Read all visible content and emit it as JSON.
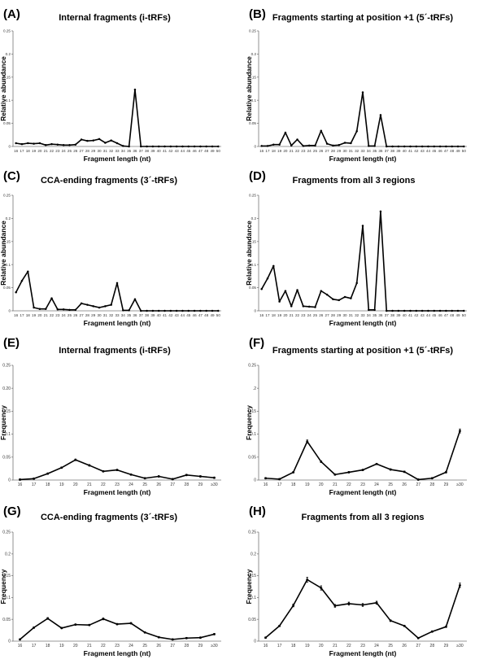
{
  "chart_data": [
    {
      "panel": "(A)",
      "type": "line",
      "title": "Internal fragments (i-tRFs)",
      "xlabel": "Fragment length (nt)",
      "ylabel": "Relative abundance",
      "ylim": [
        0,
        0.25
      ],
      "yticks": [
        "0",
        "0.05",
        "0.1",
        "0.15",
        "0.2",
        "0.25"
      ],
      "categories": [
        "16",
        "17",
        "18",
        "19",
        "20",
        "21",
        "22",
        "23",
        "24",
        "25",
        "26",
        "27",
        "28",
        "29",
        "30",
        "31",
        "32",
        "33",
        "34",
        "35",
        "36",
        "37",
        "38",
        "39",
        "40",
        "41",
        "42",
        "43",
        "44",
        "45",
        "46",
        "47",
        "48",
        "49",
        "50"
      ],
      "values": [
        0.007,
        0.005,
        0.007,
        0.006,
        0.007,
        0.003,
        0.005,
        0.004,
        0.003,
        0.003,
        0.004,
        0.015,
        0.012,
        0.013,
        0.016,
        0.008,
        0.013,
        0.007,
        0.001,
        0.0,
        0.123,
        0.0,
        0.0,
        0.0,
        0.0,
        0.0,
        0.0,
        0.0,
        0.0,
        0.0,
        0.0,
        0.0,
        0.0,
        0.0,
        0.0
      ]
    },
    {
      "panel": "(B)",
      "type": "line",
      "title": "Fragments starting at position +1 (5´-tRFs)",
      "xlabel": "Fragment length (nt)",
      "ylabel": "Relative abundance",
      "ylim": [
        0,
        0.25
      ],
      "yticks": [
        "0",
        "0.05",
        "0.1",
        "0.15",
        "0.2",
        "0.25"
      ],
      "categories": [
        "16",
        "17",
        "18",
        "19",
        "20",
        "21",
        "22",
        "23",
        "24",
        "25",
        "26",
        "27",
        "28",
        "29",
        "30",
        "31",
        "32",
        "33",
        "34",
        "35",
        "36",
        "37",
        "38",
        "39",
        "40",
        "41",
        "42",
        "43",
        "44",
        "45",
        "46",
        "47",
        "48",
        "49",
        "50"
      ],
      "values": [
        0.001,
        0.001,
        0.004,
        0.004,
        0.03,
        0.002,
        0.015,
        0.001,
        0.002,
        0.002,
        0.034,
        0.006,
        0.002,
        0.003,
        0.008,
        0.007,
        0.033,
        0.117,
        0.001,
        0.001,
        0.068,
        0.0,
        0.0,
        0.0,
        0.0,
        0.0,
        0.0,
        0.0,
        0.0,
        0.0,
        0.0,
        0.0,
        0.0,
        0.0,
        0.0
      ]
    },
    {
      "panel": "(C)",
      "type": "line",
      "title": "CCA-ending fragments (3´-tRFs)",
      "xlabel": "Fragment length (nt)",
      "ylabel": "Relative abundance",
      "ylim": [
        0,
        0.25
      ],
      "yticks": [
        "0",
        "0.05",
        "0.1",
        "0.15",
        "0.2",
        "0.25"
      ],
      "categories": [
        "16",
        "17",
        "18",
        "19",
        "20",
        "21",
        "22",
        "23",
        "24",
        "25",
        "26",
        "27",
        "28",
        "29",
        "30",
        "31",
        "32",
        "33",
        "34",
        "35",
        "36",
        "37",
        "38",
        "39",
        "40",
        "41",
        "42",
        "43",
        "44",
        "45",
        "46",
        "47",
        "48",
        "49",
        "50"
      ],
      "values": [
        0.04,
        0.065,
        0.085,
        0.007,
        0.004,
        0.004,
        0.027,
        0.003,
        0.003,
        0.002,
        0.002,
        0.016,
        0.013,
        0.01,
        0.007,
        0.01,
        0.013,
        0.06,
        0.001,
        0.001,
        0.025,
        0.0,
        0.0,
        0.0,
        0.0,
        0.0,
        0.0,
        0.0,
        0.0,
        0.0,
        0.0,
        0.0,
        0.0,
        0.0,
        0.0
      ]
    },
    {
      "panel": "(D)",
      "type": "line",
      "title": "Fragments from all 3 regions",
      "xlabel": "Fragment length (nt)",
      "ylabel": "Relative abundance",
      "ylim": [
        0,
        0.25
      ],
      "yticks": [
        "0",
        "0.05",
        "0.1",
        "0.15",
        "0.2",
        "0.25"
      ],
      "categories": [
        "16",
        "17",
        "18",
        "19",
        "20",
        "21",
        "22",
        "23",
        "24",
        "25",
        "26",
        "27",
        "28",
        "29",
        "30",
        "31",
        "32",
        "33",
        "34",
        "35",
        "36",
        "37",
        "38",
        "39",
        "40",
        "41",
        "42",
        "43",
        "44",
        "45",
        "46",
        "47",
        "48",
        "49",
        "50"
      ],
      "values": [
        0.047,
        0.07,
        0.097,
        0.02,
        0.043,
        0.01,
        0.045,
        0.01,
        0.009,
        0.008,
        0.043,
        0.035,
        0.025,
        0.023,
        0.03,
        0.027,
        0.06,
        0.184,
        0.002,
        0.002,
        0.215,
        0.0,
        0.0,
        0.0,
        0.0,
        0.0,
        0.0,
        0.0,
        0.0,
        0.0,
        0.0,
        0.0,
        0.0,
        0.0,
        0.0
      ]
    },
    {
      "panel": "(E)",
      "type": "line",
      "title": "Internal fragments (i-tRFs)",
      "xlabel": "Fragment length (nt)",
      "ylabel": "Frequency",
      "ylim": [
        0,
        0.25
      ],
      "yticks": [
        "0",
        "0.05",
        "0.1",
        "0.15",
        "0.20",
        "0.25"
      ],
      "categories": [
        "16",
        "17",
        "18",
        "19",
        "20",
        "21",
        "22",
        "23",
        "24",
        "25",
        "26",
        "27",
        "28",
        "29",
        "≥30"
      ],
      "values": [
        0.001,
        0.003,
        0.014,
        0.027,
        0.044,
        0.032,
        0.019,
        0.022,
        0.012,
        0.004,
        0.008,
        0.002,
        0.011,
        0.008,
        0.005
      ]
    },
    {
      "panel": "(F)",
      "type": "line",
      "title": "Fragments starting at position +1 (5´-tRFs)",
      "xlabel": "Fragment length (nt)",
      "ylabel": "Frequency",
      "ylim": [
        0,
        0.25
      ],
      "yticks": [
        "0",
        "0.05",
        "0.1",
        "0.15",
        ".2",
        "0.25"
      ],
      "categories": [
        "16",
        "17",
        "18",
        "19",
        "20",
        "21",
        "22",
        "23",
        "24",
        "25",
        "26",
        "27",
        "28",
        "29",
        "≥30"
      ],
      "values": [
        0.004,
        0.002,
        0.017,
        0.084,
        0.04,
        0.012,
        0.017,
        0.022,
        0.035,
        0.023,
        0.018,
        0.001,
        0.004,
        0.017,
        0.107
      ]
    },
    {
      "panel": "(G)",
      "type": "line",
      "title": "CCA-ending fragments (3´-tRFs)",
      "xlabel": "Fragment length (nt)",
      "ylabel": "Frequency",
      "ylim": [
        0,
        0.25
      ],
      "yticks": [
        "0",
        "0.05",
        "0.1",
        "0.15",
        "0.2",
        "0.25"
      ],
      "categories": [
        "16",
        "17",
        "18",
        "19",
        "20",
        "21",
        "22",
        "23",
        "24",
        "25",
        "26",
        "27",
        "28",
        "29",
        "≥30"
      ],
      "values": [
        0.004,
        0.031,
        0.052,
        0.03,
        0.038,
        0.037,
        0.051,
        0.039,
        0.041,
        0.02,
        0.009,
        0.004,
        0.007,
        0.008,
        0.016
      ]
    },
    {
      "panel": "(H)",
      "type": "line",
      "title": "Fragments from all 3 regions",
      "xlabel": "Fragment length (nt)",
      "ylabel": "Frequency",
      "ylim": [
        0,
        0.25
      ],
      "yticks": [
        "0",
        "0.05",
        "0.1",
        "0.15",
        "0.2",
        "0.25"
      ],
      "categories": [
        "16",
        "17",
        "18",
        "19",
        "20",
        "21",
        "22",
        "23",
        "24",
        "25",
        "26",
        "27",
        "28",
        "29",
        "≥30"
      ],
      "values": [
        0.008,
        0.035,
        0.082,
        0.141,
        0.122,
        0.081,
        0.086,
        0.083,
        0.088,
        0.047,
        0.035,
        0.007,
        0.022,
        0.033,
        0.128
      ]
    }
  ]
}
